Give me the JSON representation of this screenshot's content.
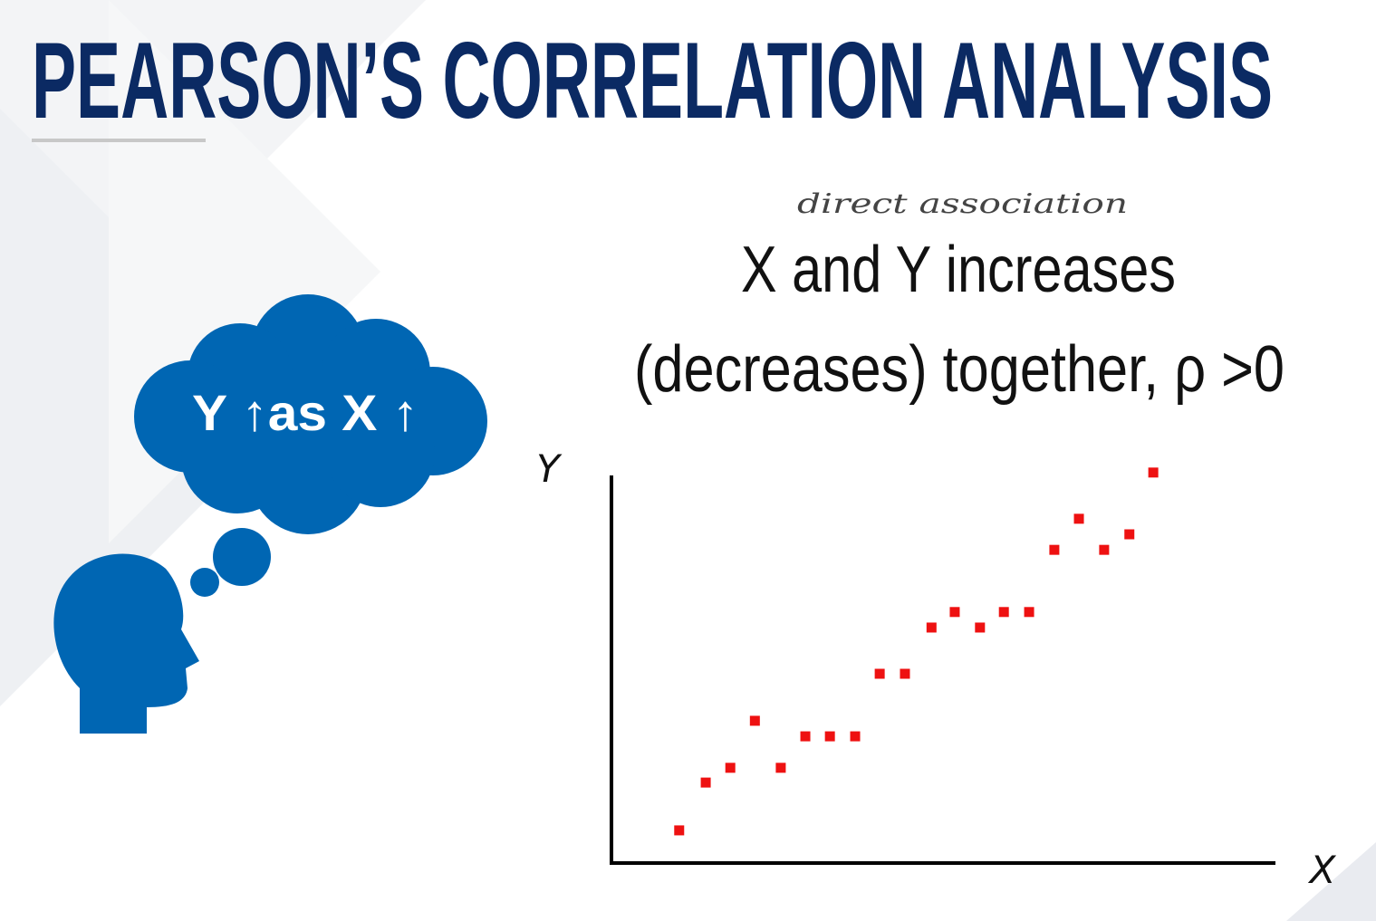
{
  "title": "PEARSON’S CORRELATION ANALYSIS",
  "annotation": "direct association",
  "statement": [
    "X and Y increases",
    "(decreases) together, ρ >0"
  ],
  "thought": "Y ↑as X ↑",
  "chart_data": {
    "type": "scatter",
    "x_label": "X",
    "y_label": "Y",
    "color": "#ee1111",
    "xlim": [
      0,
      100
    ],
    "ylim": [
      0,
      100
    ],
    "x": [
      10.2,
      14.2,
      17.9,
      21.6,
      25.5,
      29.2,
      32.9,
      36.7,
      40.4,
      44.2,
      48.2,
      51.7,
      55.5,
      59.1,
      62.9,
      66.7,
      70.4,
      74.2,
      78.0,
      81.6
    ],
    "values": [
      8.2,
      20.2,
      23.9,
      35.7,
      23.9,
      31.8,
      31.8,
      31.8,
      47.5,
      47.5,
      59.1,
      63.0,
      59.1,
      63.0,
      63.0,
      78.6,
      86.4,
      78.6,
      82.5,
      98.0
    ]
  }
}
